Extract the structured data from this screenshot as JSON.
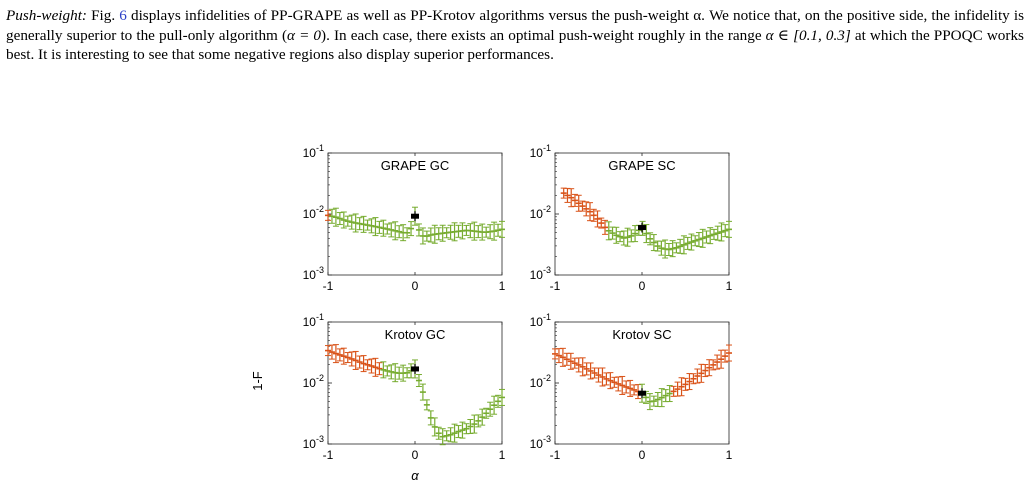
{
  "paragraph": {
    "heading": "Push-weight:",
    "text_a": " Fig. ",
    "fig_ref": "6",
    "text_b": " displays infidelities of PP-GRAPE as well as PP-Krotov algorithms versus the push-weight α. We notice that, on the positive side, the infidelity is generally superior to the pull-only algorithm (",
    "math_alpha0": "α = 0",
    "text_c": "). In each case, there exists an optimal push-weight roughly in the range ",
    "math_range": "α ∈ [0.1, 0.3]",
    "text_d": " at which the PPOQC works best. It is interesting to see that some negative regions also display superior performances."
  },
  "figure": {
    "ylabel": "1-F",
    "xlabel": "α",
    "colors": {
      "superior": "#77ac30",
      "inferior": "#d95319",
      "pull_only": "#000000"
    }
  },
  "chart_data": [
    {
      "type": "scatter",
      "title": "GRAPE GC",
      "xlim": [
        -1,
        1
      ],
      "ylim": [
        0.001,
        0.1
      ],
      "yscale": "log",
      "xticks": [
        "-1",
        "0",
        "1"
      ],
      "yticks": [
        "10^-3",
        "10^-2",
        "10^-1"
      ],
      "series": [
        {
          "x": [
            -1,
            -0.9,
            -0.8,
            -0.7,
            -0.6,
            -0.5,
            -0.4,
            -0.3,
            -0.2,
            -0.1,
            -0.05,
            0,
            0.05,
            0.1,
            0.2,
            0.3,
            0.4,
            0.5,
            0.6,
            0.7,
            0.8,
            0.9,
            1
          ],
          "y": [
            0.0095,
            0.0088,
            0.0078,
            0.0072,
            0.0068,
            0.0064,
            0.006,
            0.0056,
            0.0052,
            0.0048,
            0.0055,
            0.0092,
            0.0052,
            0.0042,
            0.0046,
            0.0048,
            0.005,
            0.0052,
            0.0054,
            0.0052,
            0.005,
            0.0052,
            0.0056
          ]
        }
      ]
    },
    {
      "type": "scatter",
      "title": "GRAPE SC",
      "xlim": [
        -1,
        1
      ],
      "ylim": [
        0.001,
        0.1
      ],
      "yscale": "log",
      "xticks": [
        "-1",
        "0",
        "1"
      ],
      "yticks": [
        "10^-3",
        "10^-2",
        "10^-1"
      ],
      "series": [
        {
          "x": [
            -0.9,
            -0.8,
            -0.7,
            -0.6,
            -0.5,
            -0.4,
            -0.3,
            -0.2,
            -0.1,
            0,
            0.1,
            0.2,
            0.3,
            0.4,
            0.5,
            0.6,
            0.7,
            0.8,
            0.9,
            1
          ],
          "y": [
            0.022,
            0.018,
            0.014,
            0.011,
            0.008,
            0.0055,
            0.0045,
            0.004,
            0.0045,
            0.006,
            0.0038,
            0.0028,
            0.0026,
            0.0028,
            0.0032,
            0.0036,
            0.004,
            0.0045,
            0.005,
            0.0056
          ]
        }
      ]
    },
    {
      "type": "scatter",
      "title": "Krotov GC",
      "xlim": [
        -1,
        1
      ],
      "ylim": [
        0.001,
        0.1
      ],
      "yscale": "log",
      "xticks": [
        "-1",
        "0",
        "1"
      ],
      "yticks": [
        "10^-3",
        "10^-2",
        "10^-1"
      ],
      "series": [
        {
          "x": [
            -1,
            -0.9,
            -0.8,
            -0.7,
            -0.6,
            -0.5,
            -0.4,
            -0.3,
            -0.2,
            -0.1,
            0,
            0.1,
            0.2,
            0.3,
            0.4,
            0.5,
            0.6,
            0.7,
            0.8,
            0.9,
            1
          ],
          "y": [
            0.034,
            0.03,
            0.027,
            0.024,
            0.021,
            0.019,
            0.017,
            0.0155,
            0.0145,
            0.0145,
            0.017,
            0.0065,
            0.0022,
            0.0013,
            0.0014,
            0.0016,
            0.0018,
            0.0022,
            0.003,
            0.0042,
            0.0058
          ]
        }
      ]
    },
    {
      "type": "scatter",
      "title": "Krotov SC",
      "xlim": [
        -1,
        1
      ],
      "ylim": [
        0.001,
        0.1
      ],
      "yscale": "log",
      "xticks": [
        "-1",
        "0",
        "1"
      ],
      "yticks": [
        "10^-3",
        "10^-2",
        "10^-1"
      ],
      "series": [
        {
          "x": [
            -1,
            -0.9,
            -0.8,
            -0.7,
            -0.6,
            -0.5,
            -0.4,
            -0.3,
            -0.2,
            -0.1,
            0,
            0.1,
            0.2,
            0.3,
            0.4,
            0.5,
            0.6,
            0.7,
            0.8,
            0.9,
            1
          ],
          "y": [
            0.03,
            0.026,
            0.022,
            0.019,
            0.016,
            0.0135,
            0.0115,
            0.01,
            0.0088,
            0.0078,
            0.0068,
            0.0048,
            0.0055,
            0.0065,
            0.0078,
            0.0095,
            0.012,
            0.015,
            0.019,
            0.024,
            0.031
          ]
        }
      ]
    }
  ]
}
